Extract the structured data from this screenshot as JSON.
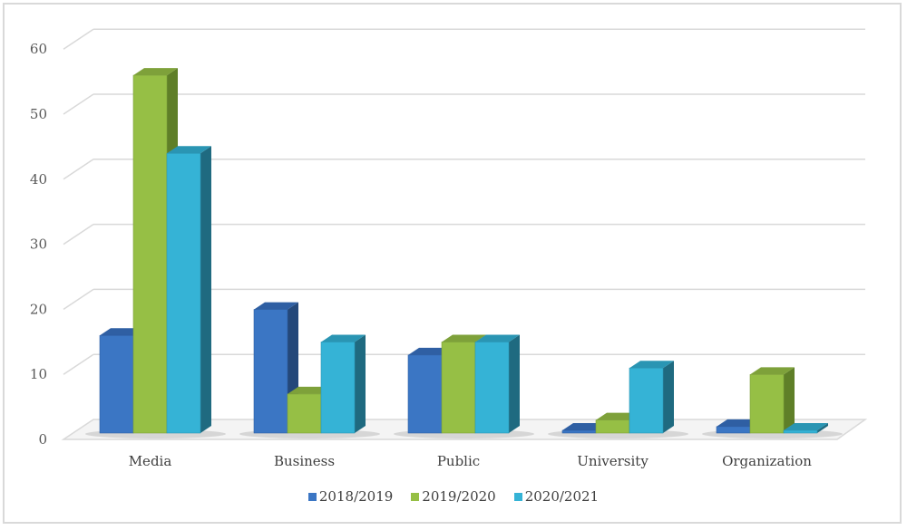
{
  "chart_data": {
    "type": "bar",
    "style": "3d-clustered-column",
    "title": "",
    "xlabel": "",
    "ylabel": "",
    "ylim": [
      0,
      60
    ],
    "yticks": [
      0,
      10,
      20,
      30,
      40,
      50,
      60
    ],
    "grid": true,
    "legend_position": "bottom",
    "categories": [
      "Media",
      "Business",
      "Public",
      "University",
      "Organization"
    ],
    "series": [
      {
        "name": "2018/2019",
        "color": "#3b76c4",
        "side": "#24487a",
        "top": "#2f5fa3",
        "values": [
          15,
          19,
          12,
          0,
          1
        ]
      },
      {
        "name": "2019/2020",
        "color": "#96bf45",
        "side": "#5f7f28",
        "top": "#7ea13a",
        "values": [
          55,
          6,
          14,
          2,
          9
        ]
      },
      {
        "name": "2020/2021",
        "color": "#35b3d6",
        "side": "#1f6a80",
        "top": "#2a95b3",
        "values": [
          43,
          14,
          14,
          10,
          0
        ]
      }
    ]
  }
}
